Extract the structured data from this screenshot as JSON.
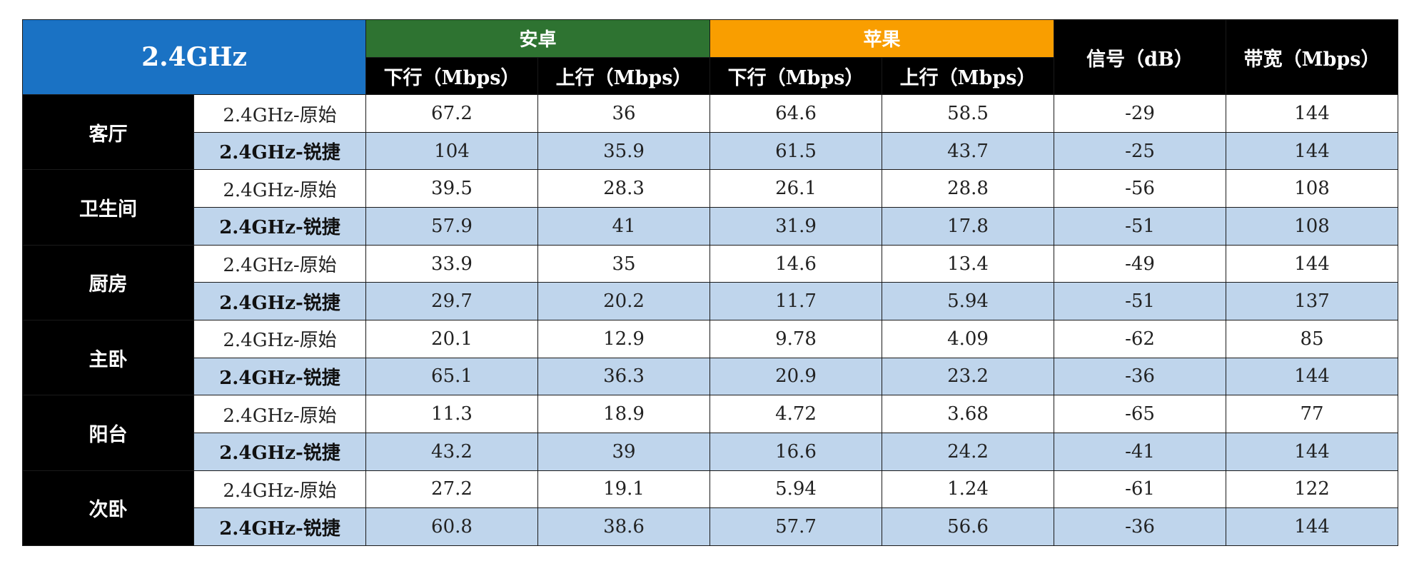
{
  "corner_label": "2.4GHz",
  "groups": {
    "android": "安卓",
    "apple": "苹果"
  },
  "headers": {
    "down": "下行（Mbps）",
    "up": "上行（Mbps）",
    "signal": "信号（dB）",
    "bandwidth": "带宽（Mbps）"
  },
  "colors": {
    "corner": "#1a72c4",
    "android": "#2e7331",
    "apple": "#f99e00",
    "row_highlight": "#bfd5ec"
  },
  "rooms": [
    {
      "name": "客厅",
      "orig": {
        "label": "2.4GHz-原始",
        "a_down": "67.2",
        "a_up": "36",
        "i_down": "64.6",
        "i_up": "58.5",
        "signal": "-29",
        "bw": "144"
      },
      "rui": {
        "label": "2.4GHz-锐捷",
        "a_down": "104",
        "a_up": "35.9",
        "i_down": "61.5",
        "i_up": "43.7",
        "signal": "-25",
        "bw": "144"
      }
    },
    {
      "name": "卫生间",
      "orig": {
        "label": "2.4GHz-原始",
        "a_down": "39.5",
        "a_up": "28.3",
        "i_down": "26.1",
        "i_up": "28.8",
        "signal": "-56",
        "bw": "108"
      },
      "rui": {
        "label": "2.4GHz-锐捷",
        "a_down": "57.9",
        "a_up": "41",
        "i_down": "31.9",
        "i_up": "17.8",
        "signal": "-51",
        "bw": "108"
      }
    },
    {
      "name": "厨房",
      "orig": {
        "label": "2.4GHz-原始",
        "a_down": "33.9",
        "a_up": "35",
        "i_down": "14.6",
        "i_up": "13.4",
        "signal": "-49",
        "bw": "144"
      },
      "rui": {
        "label": "2.4GHz-锐捷",
        "a_down": "29.7",
        "a_up": "20.2",
        "i_down": "11.7",
        "i_up": "5.94",
        "signal": "-51",
        "bw": "137"
      }
    },
    {
      "name": "主卧",
      "orig": {
        "label": "2.4GHz-原始",
        "a_down": "20.1",
        "a_up": "12.9",
        "i_down": "9.78",
        "i_up": "4.09",
        "signal": "-62",
        "bw": "85"
      },
      "rui": {
        "label": "2.4GHz-锐捷",
        "a_down": "65.1",
        "a_up": "36.3",
        "i_down": "20.9",
        "i_up": "23.2",
        "signal": "-36",
        "bw": "144"
      }
    },
    {
      "name": "阳台",
      "orig": {
        "label": "2.4GHz-原始",
        "a_down": "11.3",
        "a_up": "18.9",
        "i_down": "4.72",
        "i_up": "3.68",
        "signal": "-65",
        "bw": "77"
      },
      "rui": {
        "label": "2.4GHz-锐捷",
        "a_down": "43.2",
        "a_up": "39",
        "i_down": "16.6",
        "i_up": "24.2",
        "signal": "-41",
        "bw": "144"
      }
    },
    {
      "name": "次卧",
      "orig": {
        "label": "2.4GHz-原始",
        "a_down": "27.2",
        "a_up": "19.1",
        "i_down": "5.94",
        "i_up": "1.24",
        "signal": "-61",
        "bw": "122"
      },
      "rui": {
        "label": "2.4GHz-锐捷",
        "a_down": "60.8",
        "a_up": "38.6",
        "i_down": "57.7",
        "i_up": "56.6",
        "signal": "-36",
        "bw": "144"
      }
    }
  ]
}
